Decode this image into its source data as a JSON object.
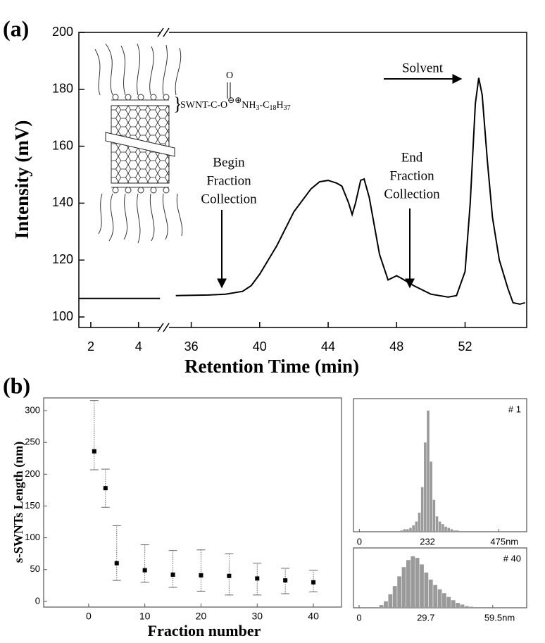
{
  "chart_data": [
    {
      "type": "line",
      "panel_label": "(a)",
      "y_label": "Intensity (mV)",
      "x_label": "Retention Time (min)",
      "ylim": [
        96.3,
        200
      ],
      "yticks": [
        100,
        120,
        140,
        160,
        180,
        200
      ],
      "color": "#000000",
      "segments": [
        {
          "xlim": [
            1.5,
            5.07
          ],
          "xticks": [
            2,
            4
          ],
          "x": [
            1.5,
            3,
            4.9
          ],
          "values": [
            106.5,
            106.5,
            106.5
          ]
        },
        {
          "xlim": [
            34.7,
            55.6
          ],
          "xticks": [
            36,
            40,
            44,
            48,
            52
          ],
          "x": [
            35.1,
            37,
            38,
            39,
            39.5,
            40,
            41,
            42,
            43,
            43.5,
            44,
            44.5,
            44.8,
            45.2,
            45.4,
            45.6,
            45.9,
            46.1,
            46.4,
            47,
            47.5,
            48,
            48.3,
            49,
            50,
            51,
            51.5,
            52,
            52.3,
            52.6,
            52.8,
            53,
            53.3,
            53.6,
            54,
            54.5,
            54.8,
            55.2,
            55.5
          ],
          "values": [
            107.5,
            107.7,
            108,
            109,
            111,
            115,
            125,
            137,
            145,
            147.5,
            148,
            147,
            146,
            140,
            136,
            140,
            148,
            148.5,
            142,
            122,
            113,
            114.5,
            113.5,
            111,
            108,
            107,
            107.5,
            116,
            140,
            175,
            184,
            178,
            155,
            135,
            120,
            110,
            105,
            104.5,
            105
          ]
        }
      ],
      "annotations": [
        [
          "Solvent"
        ],
        [
          "Begin",
          "Fraction",
          "Collection"
        ],
        [
          "End",
          "Fraction",
          "Collection"
        ]
      ],
      "chem": {
        "carbonyl": "O",
        "main": "SWNT-C-O",
        "charges": "⊖⊕",
        "amine": "NH",
        "n1": "3",
        "chain": "-C",
        "n2": "18",
        "h": "H",
        "n3": "37"
      }
    },
    {
      "type": "scatter",
      "panel_label": "(b)",
      "y_label": "s-SWNTs Length (nm)",
      "x_label": "Fraction number",
      "xlim": [
        -8,
        45
      ],
      "xticks": [
        0,
        10,
        20,
        30,
        40
      ],
      "ylim": [
        -9,
        320
      ],
      "yticks": [
        0,
        50,
        100,
        150,
        200,
        250,
        300
      ],
      "color": "#000000",
      "x": [
        1,
        3,
        5,
        10,
        15,
        20,
        25,
        30,
        35,
        40
      ],
      "values": [
        236,
        178,
        60,
        49,
        42,
        41,
        40,
        36,
        33,
        30
      ],
      "lower": [
        207,
        148,
        33,
        30,
        22,
        16,
        10,
        10,
        12,
        15
      ],
      "upper": [
        316,
        208,
        119,
        89,
        80,
        81,
        75,
        60,
        52,
        49
      ]
    },
    {
      "type": "histogram",
      "label": "# 1",
      "color": "#9a9a9a",
      "xlim": [
        -20,
        570
      ],
      "ylim": [
        0,
        100
      ],
      "xticks": [
        0,
        232,
        {
          "value": 475,
          "label": "475nm"
        }
      ],
      "bins": [
        140,
        150,
        160,
        170,
        180,
        190,
        200,
        210,
        220,
        230,
        240,
        250,
        260,
        270,
        280,
        290,
        300,
        310,
        320,
        330,
        340
      ],
      "counts": [
        1,
        2,
        2,
        3,
        5,
        8,
        15,
        35,
        70,
        95,
        55,
        25,
        12,
        8,
        6,
        4,
        3,
        2,
        1,
        1
      ]
    },
    {
      "type": "histogram",
      "label": "# 40",
      "color": "#9a9a9a",
      "xlim": [
        -2.5,
        74.6
      ],
      "ylim": [
        0,
        100
      ],
      "xticks": [
        0,
        29.7,
        {
          "value": 59.5,
          "label": "59.5nm"
        }
      ],
      "bins": [
        9,
        11,
        13,
        15,
        17,
        19,
        21,
        23,
        25,
        27,
        29,
        31,
        33,
        35,
        37,
        39,
        41,
        43,
        45,
        47,
        49,
        51
      ],
      "counts": [
        5,
        12,
        25,
        40,
        58,
        75,
        88,
        95,
        92,
        80,
        65,
        52,
        42,
        34,
        27,
        20,
        14,
        9,
        6,
        3,
        2
      ]
    }
  ]
}
